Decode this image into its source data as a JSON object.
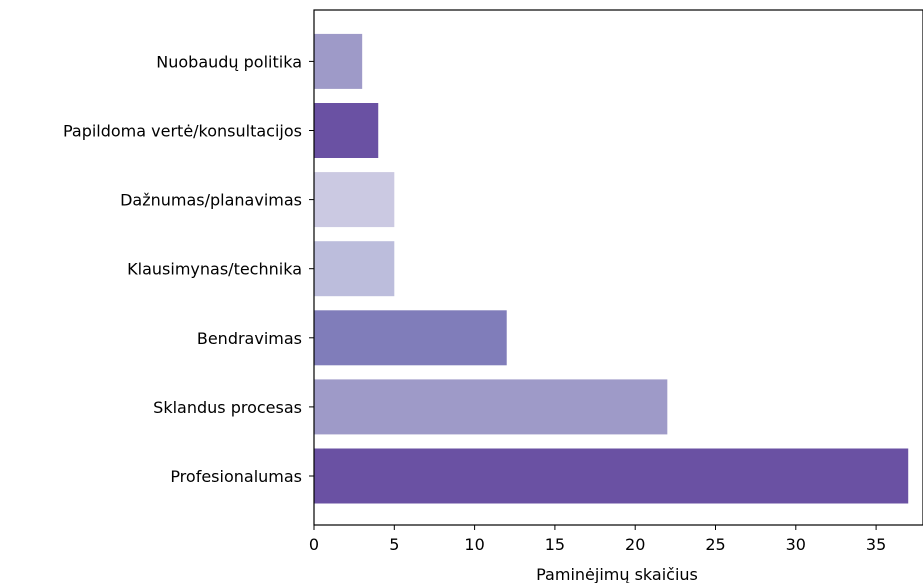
{
  "chart_data": {
    "type": "bar",
    "orientation": "horizontal",
    "categories": [
      "Profesionalumas",
      "Sklandus procesas",
      "Bendravimas",
      "Klausimynas/technika",
      "Dažnumas/planavimas",
      "Papildoma vertė/konsultacijos",
      "Nuobaudų politika"
    ],
    "values": [
      37,
      22,
      12,
      5,
      5,
      4,
      3
    ],
    "colors": [
      "#6a51a3",
      "#9e9ac8",
      "#807dba",
      "#bcbddc",
      "#cbc9e2",
      "#6a51a3",
      "#9e9ac8"
    ],
    "xlabel": "Paminėjimų skaičius",
    "ylabel": "",
    "title": "",
    "xlim": [
      0,
      37.5
    ],
    "xticks": [
      0,
      5,
      10,
      15,
      20,
      25,
      30,
      35
    ],
    "grid": false
  }
}
